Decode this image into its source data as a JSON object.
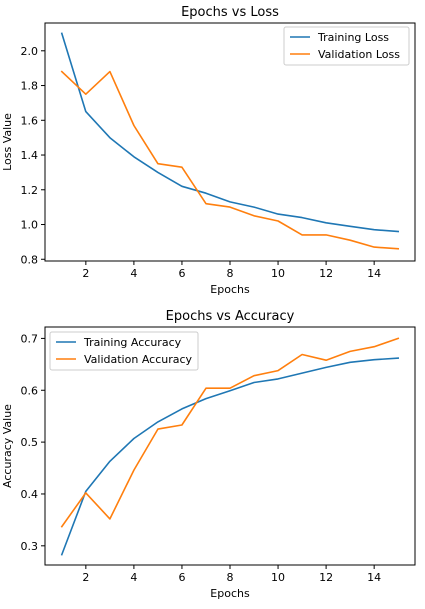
{
  "chart_data": [
    {
      "type": "line",
      "title": "Epochs vs Loss",
      "xlabel": "Epochs",
      "ylabel": "Loss Value",
      "xlim": [
        0.3,
        15.7
      ],
      "ylim": [
        0.79,
        2.16
      ],
      "xticks": [
        2,
        4,
        6,
        8,
        10,
        12,
        14
      ],
      "xtick_labels": [
        "2",
        "4",
        "6",
        "8",
        "10",
        "12",
        "14"
      ],
      "yticks": [
        0.8,
        1.0,
        1.2,
        1.4,
        1.6,
        1.8,
        2.0
      ],
      "ytick_labels": [
        "0.8",
        "1.0",
        "1.2",
        "1.4",
        "1.6",
        "1.8",
        "2.0"
      ],
      "grid": false,
      "legend": "upper right",
      "x": [
        1,
        2,
        3,
        4,
        5,
        6,
        7,
        8,
        9,
        10,
        11,
        12,
        13,
        14,
        15
      ],
      "series": [
        {
          "name": "Training Loss",
          "color": "#1f77b4",
          "values": [
            2.1,
            1.65,
            1.5,
            1.39,
            1.3,
            1.22,
            1.18,
            1.13,
            1.1,
            1.06,
            1.04,
            1.01,
            0.99,
            0.97,
            0.96
          ]
        },
        {
          "name": "Validation Loss",
          "color": "#ff7f0e",
          "values": [
            1.88,
            1.75,
            1.88,
            1.57,
            1.35,
            1.33,
            1.12,
            1.1,
            1.05,
            1.02,
            0.94,
            0.94,
            0.91,
            0.87,
            0.86
          ]
        }
      ]
    },
    {
      "type": "line",
      "title": "Epochs vs Accuracy",
      "xlabel": "Epochs",
      "ylabel": "Accuracy Value",
      "xlim": [
        0.3,
        15.7
      ],
      "ylim": [
        0.263,
        0.722
      ],
      "xticks": [
        2,
        4,
        6,
        8,
        10,
        12,
        14
      ],
      "xtick_labels": [
        "2",
        "4",
        "6",
        "8",
        "10",
        "12",
        "14"
      ],
      "yticks": [
        0.3,
        0.4,
        0.5,
        0.6,
        0.7
      ],
      "ytick_labels": [
        "0.3",
        "0.4",
        "0.5",
        "0.6",
        "0.7"
      ],
      "grid": false,
      "legend": "upper left",
      "x": [
        1,
        2,
        3,
        4,
        5,
        6,
        7,
        8,
        9,
        10,
        11,
        12,
        13,
        14,
        15
      ],
      "series": [
        {
          "name": "Training Accuracy",
          "color": "#1f77b4",
          "values": [
            0.283,
            0.405,
            0.463,
            0.507,
            0.539,
            0.564,
            0.584,
            0.599,
            0.615,
            0.622,
            0.633,
            0.644,
            0.654,
            0.659,
            0.662
          ]
        },
        {
          "name": "Validation Accuracy",
          "color": "#ff7f0e",
          "values": [
            0.337,
            0.402,
            0.352,
            0.446,
            0.525,
            0.533,
            0.604,
            0.604,
            0.628,
            0.638,
            0.669,
            0.658,
            0.675,
            0.684,
            0.7
          ]
        }
      ]
    }
  ]
}
